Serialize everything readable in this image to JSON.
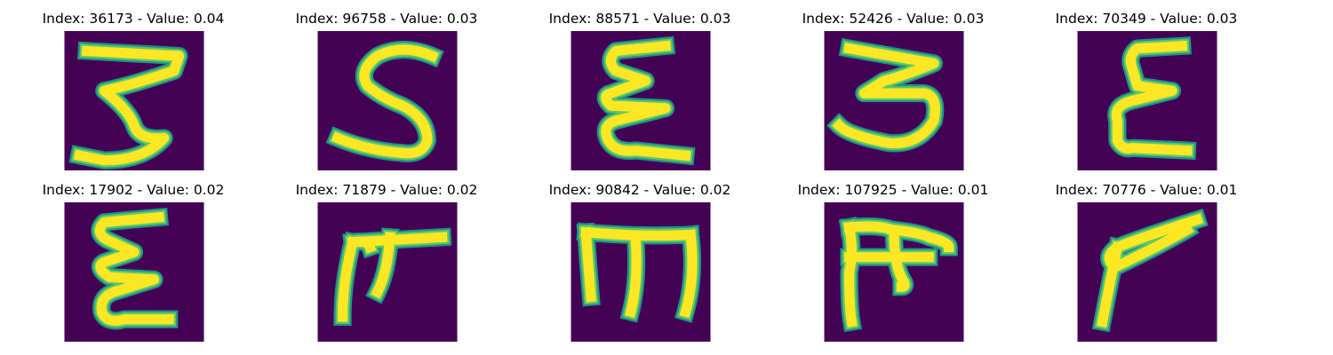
{
  "colors": {
    "background": "#440154",
    "stroke_edge": "#21918c",
    "stroke_mid": "#5ec962",
    "stroke_core": "#fde725"
  },
  "samples": [
    {
      "title": "Index: 36173 - Value: 0.04"
    },
    {
      "title": "Index: 96758 - Value: 0.03"
    },
    {
      "title": "Index: 88571 - Value: 0.03"
    },
    {
      "title": "Index: 52426 - Value: 0.03"
    },
    {
      "title": "Index: 70349 - Value: 0.03"
    },
    {
      "title": "Index: 17902 - Value: 0.02"
    },
    {
      "title": "Index: 71879 - Value: 0.02"
    },
    {
      "title": "Index: 90842 - Value: 0.02"
    },
    {
      "title": "Index: 107925 - Value: 0.01"
    },
    {
      "title": "Index: 70776 - Value: 0.01"
    }
  ]
}
